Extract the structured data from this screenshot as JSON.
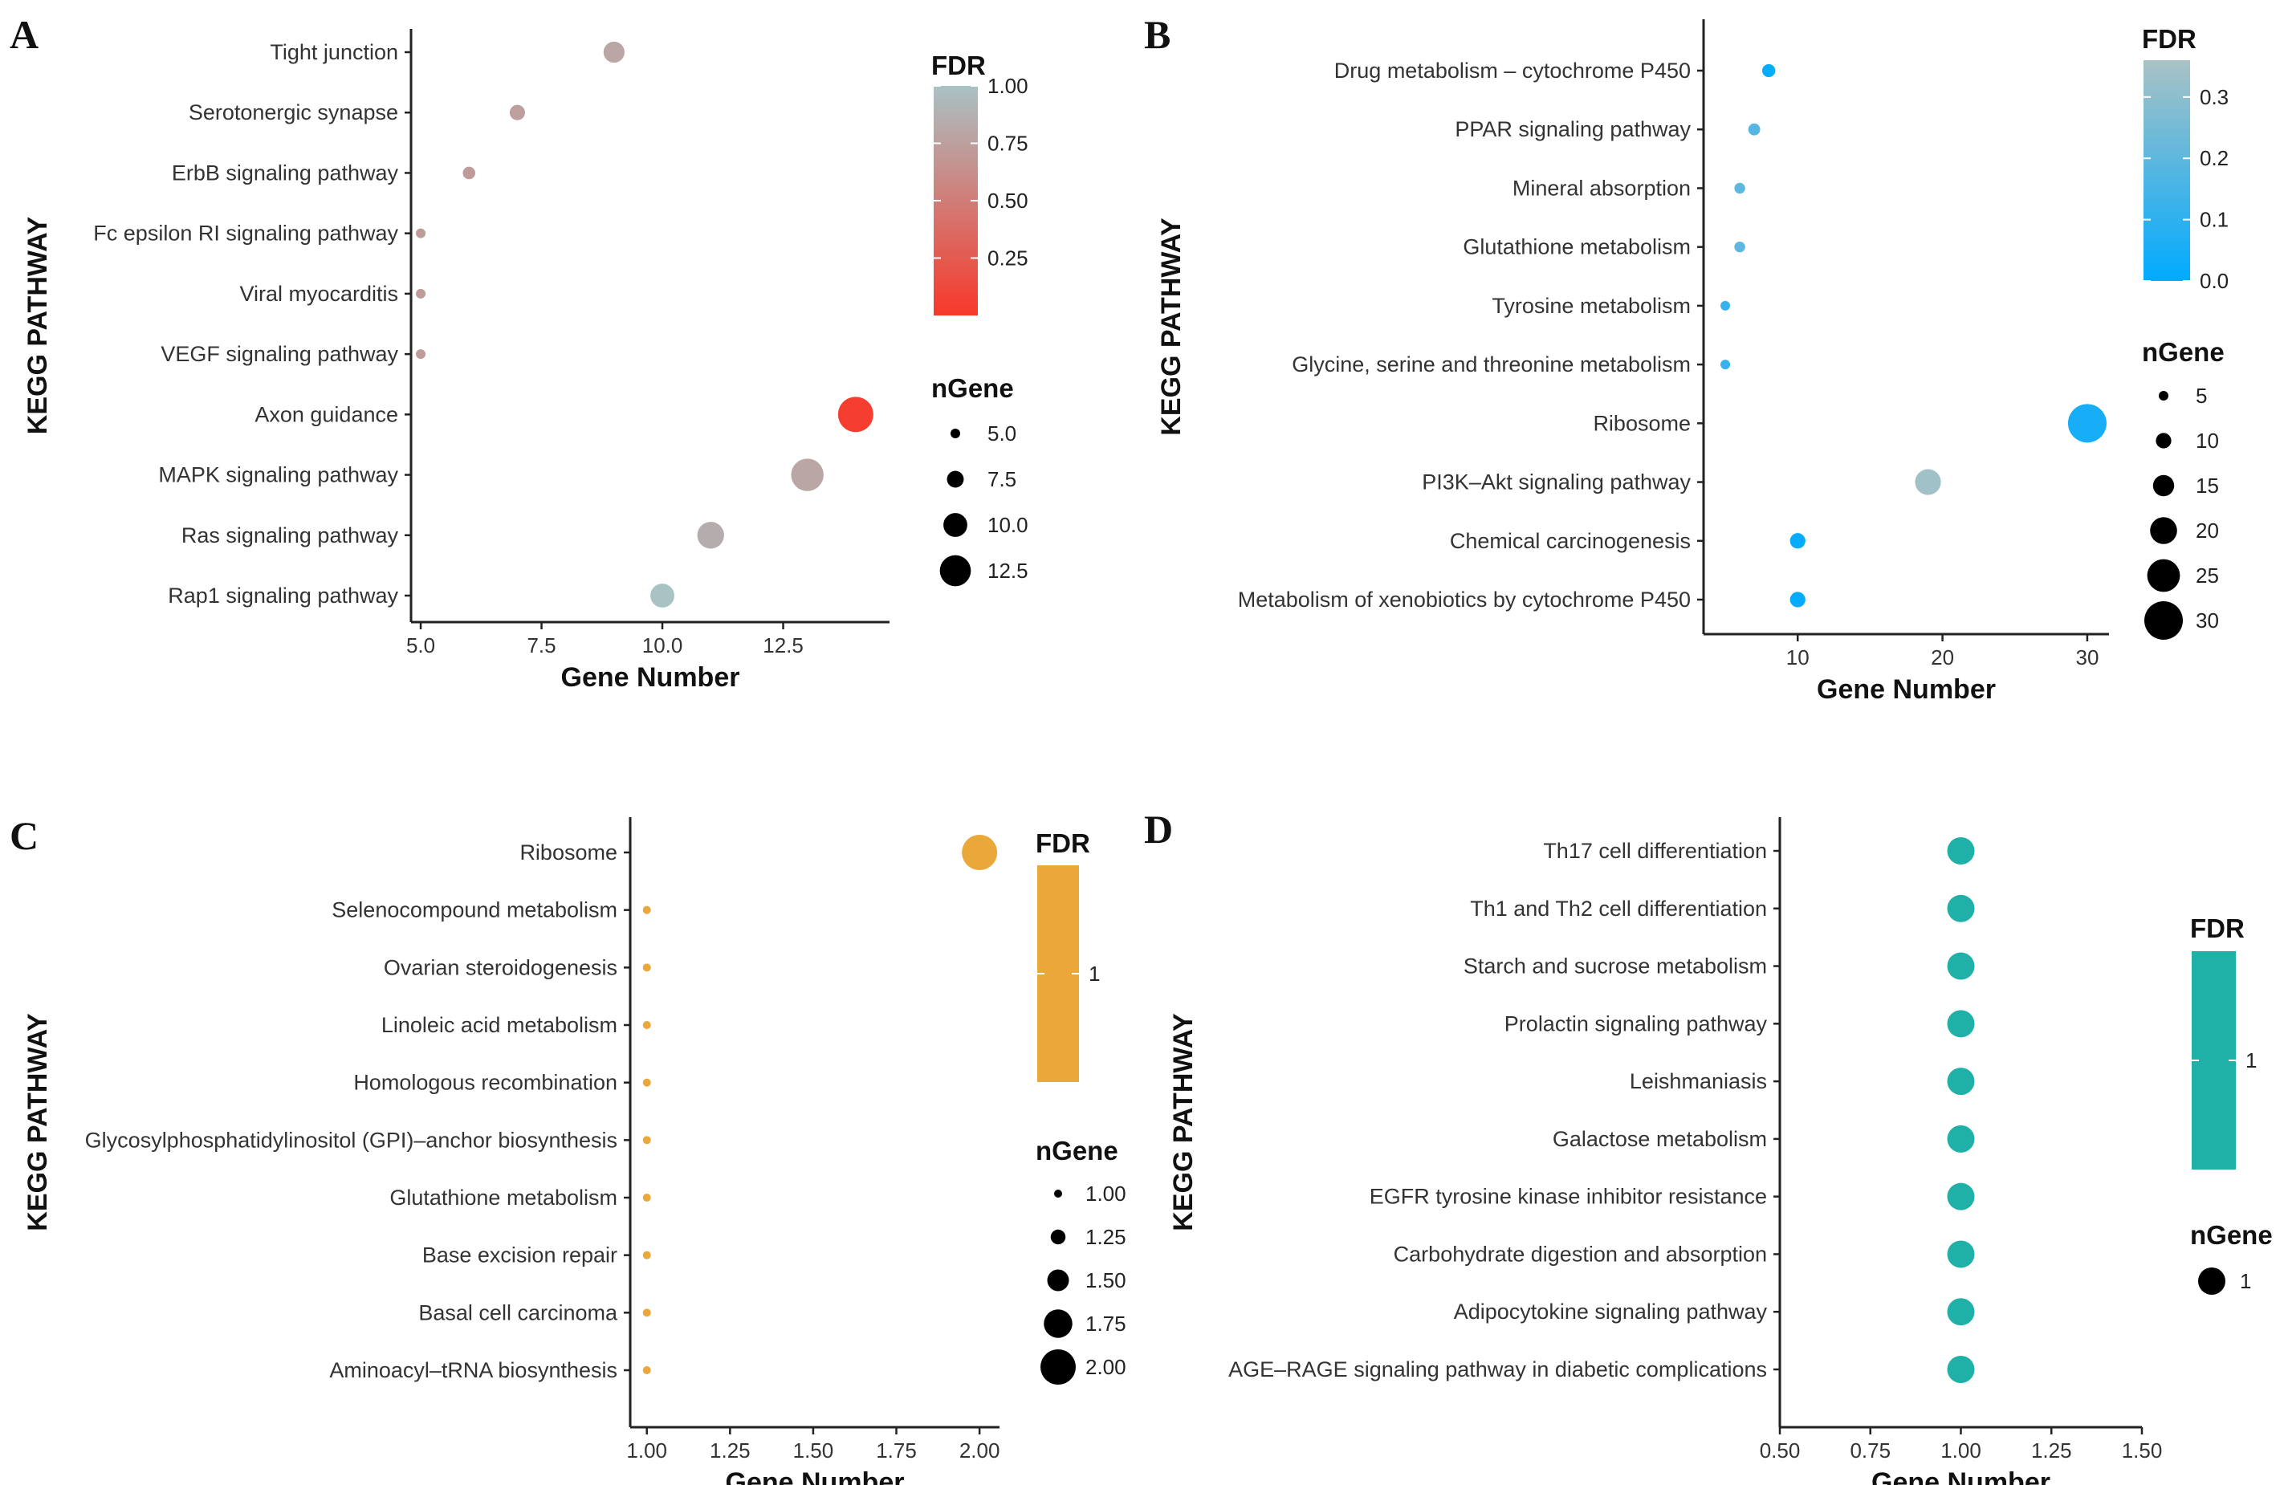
{
  "chart_data": [
    {
      "type": "scatter",
      "panel": "A",
      "xlabel": "Gene Number",
      "ylabel": "KEGG PATHWAY",
      "xlim": [
        4.8,
        14.7
      ],
      "xticks": [
        "5.0",
        "7.5",
        "10.0",
        "12.5"
      ],
      "xtick_values": [
        5,
        7.5,
        10,
        12.5
      ],
      "categories": [
        "Tight junction",
        "Serotonergic synapse",
        "ErbB signaling pathway",
        "Fc epsilon RI signaling pathway",
        "Viral myocarditis",
        "VEGF signaling pathway",
        "Axon guidance",
        "MAPK signaling pathway",
        "Ras signaling pathway",
        "Rap1 signaling pathway"
      ],
      "x": [
        9,
        7,
        6,
        5,
        5,
        5,
        14,
        13,
        11,
        10
      ],
      "fdr": [
        0.8,
        0.75,
        0.72,
        0.72,
        0.72,
        0.72,
        0.04,
        0.8,
        0.85,
        1.0
      ],
      "color_legend": {
        "title": "FDR",
        "ticks": [
          "1.00",
          "0.75",
          "0.50",
          "0.25"
        ],
        "tick_values": [
          1.0,
          0.75,
          0.5,
          0.25
        ],
        "range": [
          0.0,
          1.0
        ],
        "color_low": "#f8382a",
        "color_high": "#a9c2c4"
      },
      "size_legend": {
        "title": "nGene",
        "labels": [
          "5.0",
          "7.5",
          "10.0",
          "12.5"
        ],
        "values": [
          5,
          7.5,
          10,
          12.5
        ]
      },
      "size_range": [
        5,
        14
      ]
    },
    {
      "type": "scatter",
      "panel": "B",
      "xlabel": "Gene Number",
      "ylabel": "KEGG PATHWAY",
      "xlim": [
        3.5,
        31.5
      ],
      "xticks": [
        "10",
        "20",
        "30"
      ],
      "xtick_values": [
        10,
        20,
        30
      ],
      "categories": [
        "Drug metabolism – cytochrome P450",
        "PPAR signaling pathway",
        "Mineral absorption",
        "Glutathione metabolism",
        "Tyrosine metabolism",
        "Glycine, serine and threonine metabolism",
        "Ribosome",
        "PI3K–Akt signaling pathway",
        "Chemical carcinogenesis",
        "Metabolism of xenobiotics by cytochrome P450"
      ],
      "x": [
        8,
        7,
        6,
        6,
        5,
        5,
        30,
        19,
        10,
        10
      ],
      "fdr": [
        0.02,
        0.18,
        0.2,
        0.2,
        0.12,
        0.12,
        0.05,
        0.34,
        0.01,
        0.01
      ],
      "color_legend": {
        "title": "FDR",
        "ticks": [
          "0.3",
          "0.2",
          "0.1",
          "0.0"
        ],
        "tick_values": [
          0.3,
          0.2,
          0.1,
          0.0
        ],
        "range": [
          0.0,
          0.36
        ],
        "color_low": "#00aaff",
        "color_high": "#a9c2c4"
      },
      "size_legend": {
        "title": "nGene",
        "labels": [
          "5",
          "10",
          "15",
          "20",
          "25",
          "30"
        ],
        "values": [
          5,
          10,
          15,
          20,
          25,
          30
        ]
      },
      "size_range": [
        5,
        30
      ]
    },
    {
      "type": "scatter",
      "panel": "C",
      "xlabel": "Gene Number",
      "ylabel": "KEGG PATHWAY",
      "xlim": [
        0.95,
        2.06
      ],
      "xticks": [
        "1.00",
        "1.25",
        "1.50",
        "1.75",
        "2.00"
      ],
      "xtick_values": [
        1.0,
        1.25,
        1.5,
        1.75,
        2.0
      ],
      "categories": [
        "Ribosome",
        "Selenocompound metabolism",
        "Ovarian steroidogenesis",
        "Linoleic acid metabolism",
        "Homologous recombination",
        "Glycosylphosphatidylinositol (GPI)–anchor biosynthesis",
        "Glutathione metabolism",
        "Base excision repair",
        "Basal cell carcinoma",
        "Aminoacyl–tRNA biosynthesis"
      ],
      "x": [
        2,
        1,
        1,
        1,
        1,
        1,
        1,
        1,
        1,
        1
      ],
      "fdr": [
        1,
        1,
        1,
        1,
        1,
        1,
        1,
        1,
        1,
        1
      ],
      "color": "#eaa83a",
      "color_legend": {
        "title": "FDR",
        "ticks": [
          "1"
        ],
        "tick_values": [
          1
        ]
      },
      "size_legend": {
        "title": "nGene",
        "labels": [
          "1.00",
          "1.25",
          "1.50",
          "1.75",
          "2.00"
        ],
        "values": [
          1.0,
          1.25,
          1.5,
          1.75,
          2.0
        ]
      },
      "size_range": [
        1,
        2
      ]
    },
    {
      "type": "scatter",
      "panel": "D",
      "xlabel": "Gene Number",
      "ylabel": "KEGG PATHWAY",
      "xlim": [
        0.5,
        1.5
      ],
      "xticks": [
        "0.50",
        "0.75",
        "1.00",
        "1.25",
        "1.50"
      ],
      "xtick_values": [
        0.5,
        0.75,
        1.0,
        1.25,
        1.5
      ],
      "categories": [
        "Th17 cell differentiation",
        "Th1 and Th2 cell differentiation",
        "Starch and sucrose metabolism",
        "Prolactin signaling pathway",
        "Leishmaniasis",
        "Galactose metabolism",
        "EGFR tyrosine kinase inhibitor resistance",
        "Carbohydrate digestion and absorption",
        "Adipocytokine signaling pathway",
        "AGE–RAGE signaling pathway in diabetic complications"
      ],
      "x": [
        1,
        1,
        1,
        1,
        1,
        1,
        1,
        1,
        1,
        1
      ],
      "fdr": [
        1,
        1,
        1,
        1,
        1,
        1,
        1,
        1,
        1,
        1
      ],
      "color": "#1fb1a8",
      "color_legend": {
        "title": "FDR",
        "ticks": [
          "1"
        ],
        "tick_values": [
          1
        ]
      },
      "size_legend": {
        "title": "nGene",
        "labels": [
          "1"
        ],
        "values": [
          1
        ]
      },
      "size_range": [
        1,
        1
      ]
    }
  ]
}
